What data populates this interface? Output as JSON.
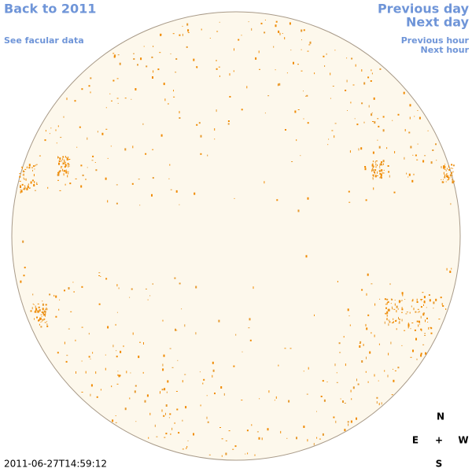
{
  "nav": {
    "back": "Back to 2011",
    "facular": "See facular data",
    "previous_day": "Previous day",
    "next_day": "Next day",
    "previous_hour": "Previous hour",
    "next_hour": "Next hour"
  },
  "compass": {
    "north": "N",
    "east": "E",
    "center": "+",
    "west": "W",
    "south": "S"
  },
  "timestamp": "2011-06-27T14:59:12"
}
